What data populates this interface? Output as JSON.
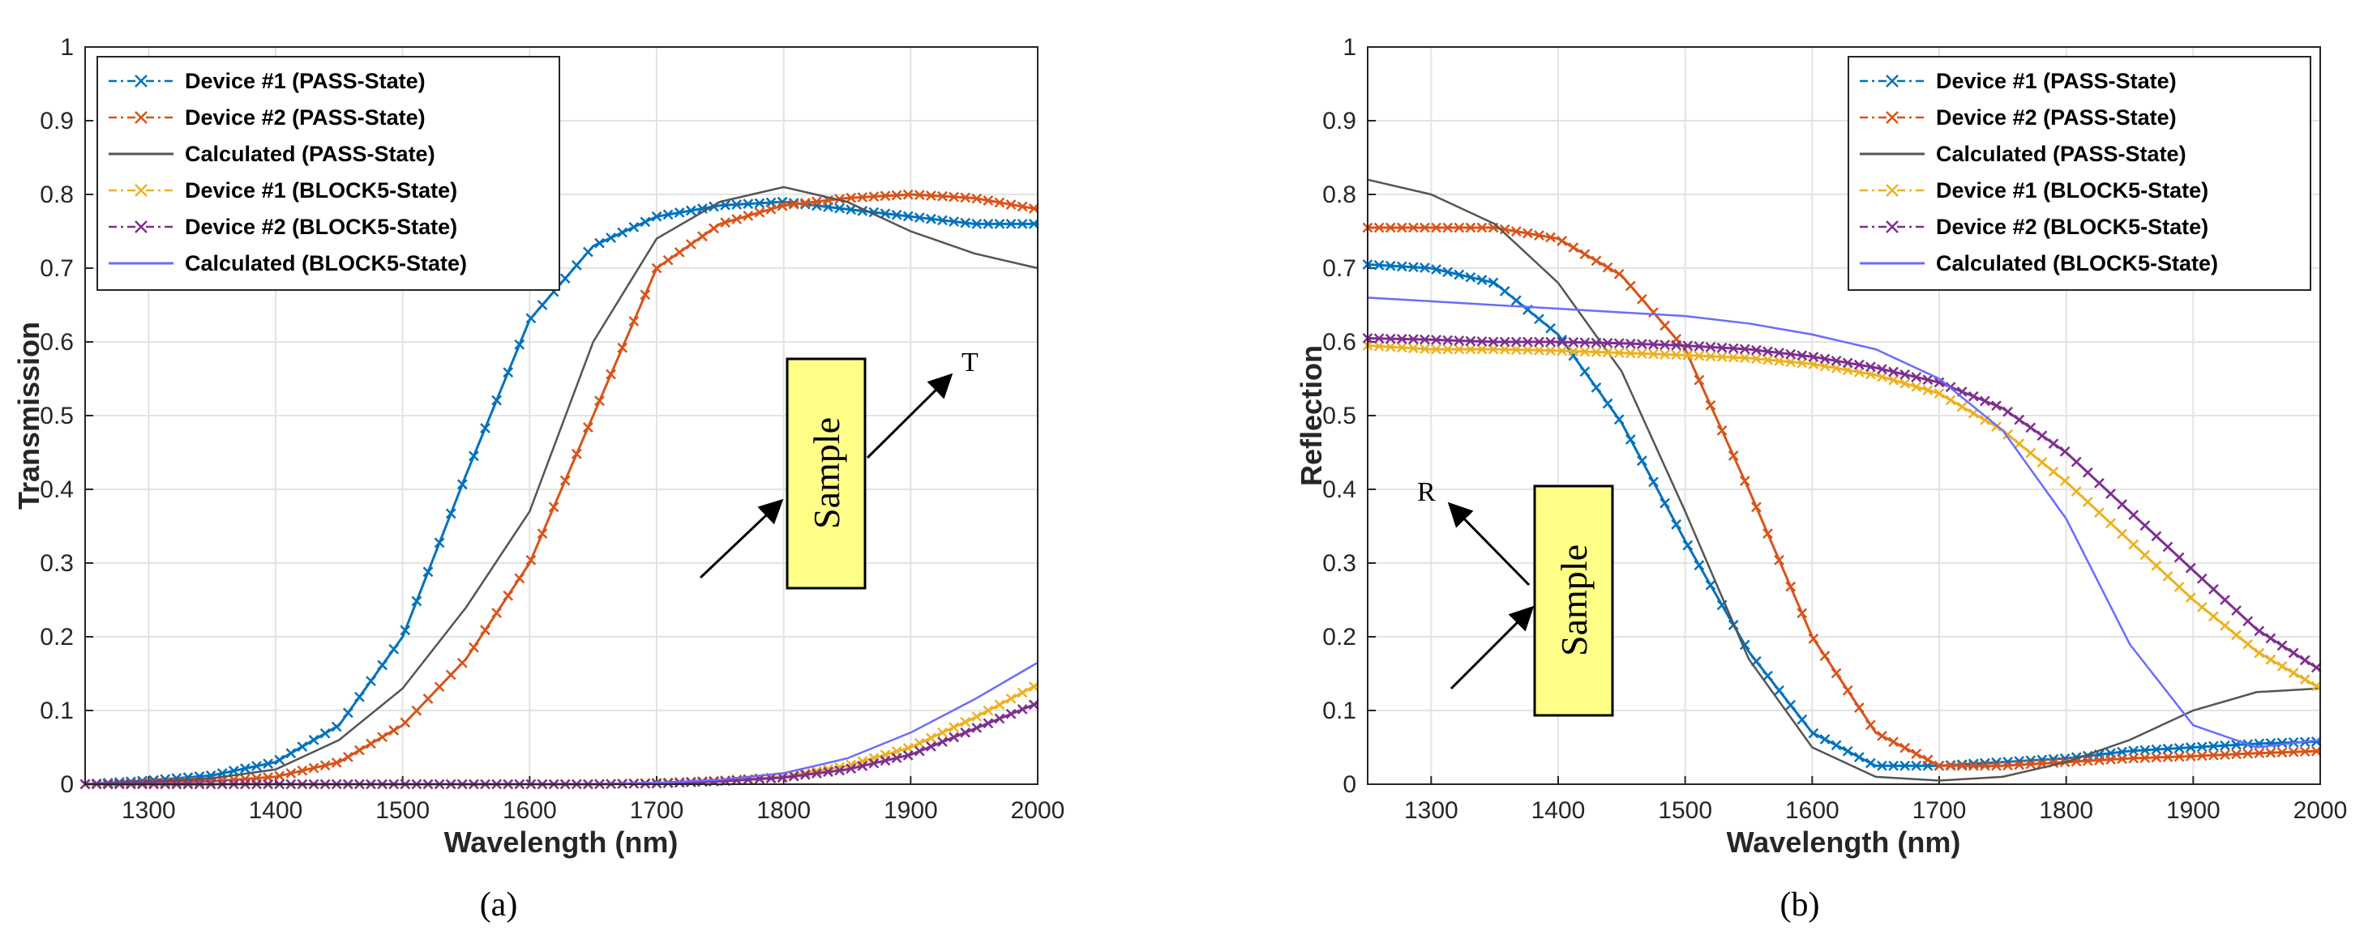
{
  "chart_data": [
    {
      "type": "line",
      "panel": "a",
      "caption": "(a)",
      "xlabel": "Wavelength (nm)",
      "ylabel": "Transmission",
      "xlim": [
        1250,
        2000
      ],
      "ylim": [
        0,
        1
      ],
      "xticks": [
        1300,
        1400,
        1500,
        1600,
        1700,
        1800,
        1900,
        2000
      ],
      "yticks": [
        0,
        0.1,
        0.2,
        0.3,
        0.4,
        0.5,
        0.6,
        0.7,
        0.8,
        0.9,
        1
      ],
      "grid": true,
      "legend_position": "top-left",
      "x": [
        1250,
        1300,
        1350,
        1400,
        1450,
        1500,
        1550,
        1600,
        1650,
        1700,
        1750,
        1800,
        1850,
        1900,
        1950,
        2000
      ],
      "series": [
        {
          "name": "Device #1 (PASS-State)",
          "color": "#0072bd",
          "style": "marker",
          "values": [
            0.0,
            0.005,
            0.012,
            0.03,
            0.08,
            0.2,
            0.42,
            0.63,
            0.73,
            0.77,
            0.785,
            0.79,
            0.78,
            0.77,
            0.76,
            0.76
          ]
        },
        {
          "name": "Device #2 (PASS-State)",
          "color": "#d95319",
          "style": "marker",
          "values": [
            0.0,
            0.002,
            0.004,
            0.01,
            0.03,
            0.08,
            0.17,
            0.3,
            0.5,
            0.7,
            0.76,
            0.785,
            0.795,
            0.8,
            0.795,
            0.78
          ]
        },
        {
          "name": "Calculated (PASS-State)",
          "color": "#555555",
          "style": "line",
          "values": [
            0.0,
            0.003,
            0.008,
            0.02,
            0.06,
            0.13,
            0.24,
            0.37,
            0.6,
            0.74,
            0.79,
            0.81,
            0.79,
            0.75,
            0.72,
            0.7
          ]
        },
        {
          "name": "Device #1 (BLOCK5-State)",
          "color": "#edb120",
          "style": "marker",
          "values": [
            0.0,
            0.0,
            0.0,
            0.0,
            0.0,
            0.0,
            0.0,
            0.0,
            0.0,
            0.002,
            0.005,
            0.01,
            0.025,
            0.05,
            0.09,
            0.135
          ]
        },
        {
          "name": "Device #2 (BLOCK5-State)",
          "color": "#7e2f8e",
          "style": "marker",
          "values": [
            0.0,
            0.0,
            0.0,
            0.0,
            0.0,
            0.0,
            0.0,
            0.0,
            0.0,
            0.001,
            0.004,
            0.009,
            0.02,
            0.04,
            0.075,
            0.11
          ]
        },
        {
          "name": "Calculated (BLOCK5-State)",
          "color": "#6b6bff",
          "style": "line",
          "values": [
            0.0,
            0.0,
            0.0,
            0.0,
            0.0,
            0.0,
            0.0,
            0.0,
            0.0,
            0.002,
            0.006,
            0.015,
            0.035,
            0.07,
            0.115,
            0.165
          ]
        }
      ],
      "annotation": {
        "box_label": "Sample",
        "arrow_label": "T"
      }
    },
    {
      "type": "line",
      "panel": "b",
      "caption": "(b)",
      "xlabel": "Wavelength (nm)",
      "ylabel": "Reflection",
      "xlim": [
        1250,
        2000
      ],
      "ylim": [
        0,
        1
      ],
      "xticks": [
        1300,
        1400,
        1500,
        1600,
        1700,
        1800,
        1900,
        2000
      ],
      "yticks": [
        0,
        0.1,
        0.2,
        0.3,
        0.4,
        0.5,
        0.6,
        0.7,
        0.8,
        0.9,
        1
      ],
      "grid": true,
      "legend_position": "top-right",
      "x": [
        1250,
        1300,
        1350,
        1400,
        1450,
        1500,
        1550,
        1600,
        1650,
        1700,
        1750,
        1800,
        1850,
        1900,
        1950,
        2000
      ],
      "series": [
        {
          "name": "Device #1 (PASS-State)",
          "color": "#0072bd",
          "style": "marker",
          "values": [
            0.705,
            0.7,
            0.68,
            0.61,
            0.49,
            0.33,
            0.18,
            0.07,
            0.025,
            0.025,
            0.03,
            0.035,
            0.045,
            0.05,
            0.055,
            0.058
          ]
        },
        {
          "name": "Device #2 (PASS-State)",
          "color": "#d95319",
          "style": "marker",
          "values": [
            0.755,
            0.755,
            0.755,
            0.74,
            0.69,
            0.59,
            0.4,
            0.2,
            0.07,
            0.025,
            0.025,
            0.03,
            0.035,
            0.038,
            0.042,
            0.045
          ]
        },
        {
          "name": "Calculated (PASS-State)",
          "color": "#555555",
          "style": "line",
          "values": [
            0.82,
            0.8,
            0.76,
            0.68,
            0.56,
            0.37,
            0.17,
            0.05,
            0.01,
            0.005,
            0.01,
            0.03,
            0.06,
            0.1,
            0.125,
            0.13
          ]
        },
        {
          "name": "Device #1 (BLOCK5-State)",
          "color": "#edb120",
          "style": "marker",
          "values": [
            0.595,
            0.59,
            0.59,
            0.588,
            0.585,
            0.582,
            0.578,
            0.57,
            0.555,
            0.53,
            0.48,
            0.41,
            0.33,
            0.25,
            0.18,
            0.13
          ]
        },
        {
          "name": "Device #2 (BLOCK5-State)",
          "color": "#7e2f8e",
          "style": "marker",
          "values": [
            0.605,
            0.603,
            0.6,
            0.6,
            0.598,
            0.595,
            0.59,
            0.58,
            0.565,
            0.545,
            0.51,
            0.45,
            0.37,
            0.29,
            0.21,
            0.155
          ]
        },
        {
          "name": "Calculated (BLOCK5-State)",
          "color": "#6b6bff",
          "style": "line",
          "values": [
            0.66,
            0.655,
            0.65,
            0.645,
            0.64,
            0.635,
            0.625,
            0.61,
            0.59,
            0.55,
            0.48,
            0.36,
            0.19,
            0.08,
            0.05,
            0.06
          ]
        }
      ],
      "annotation": {
        "box_label": "Sample",
        "arrow_label": "R"
      }
    }
  ]
}
